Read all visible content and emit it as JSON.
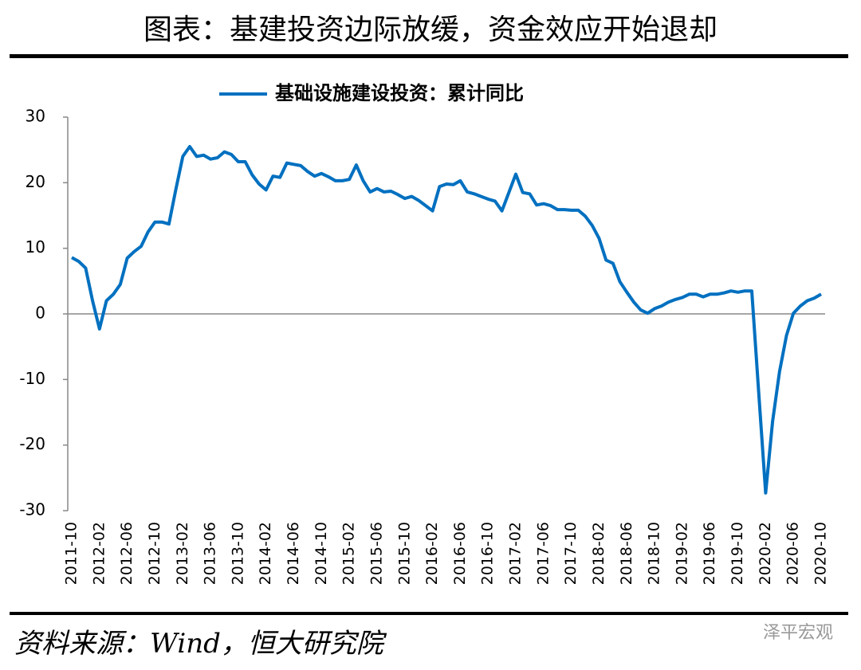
{
  "chart_data": {
    "type": "line",
    "title": "图表：基建投资边际放缓，资金效应开始退却",
    "source": "资料来源：Wind，恒大研究院",
    "watermark": "泽平宏观",
    "categories": [
      "2011-10",
      null,
      null,
      null,
      "2012-02",
      null,
      null,
      null,
      "2012-06",
      null,
      null,
      null,
      "2012-10",
      null,
      null,
      null,
      "2013-02",
      null,
      null,
      null,
      "2013-06",
      null,
      null,
      null,
      "2013-10",
      null,
      null,
      null,
      "2014-02",
      null,
      null,
      null,
      "2014-06",
      null,
      null,
      null,
      "2014-10",
      null,
      null,
      null,
      "2015-02",
      null,
      null,
      null,
      "2015-06",
      null,
      null,
      null,
      "2015-10",
      null,
      null,
      null,
      "2016-02",
      null,
      null,
      null,
      "2016-06",
      null,
      null,
      null,
      "2016-10",
      null,
      null,
      null,
      "2017-02",
      null,
      null,
      null,
      "2017-06",
      null,
      null,
      null,
      "2017-10",
      null,
      null,
      null,
      "2018-02",
      null,
      null,
      null,
      "2018-06",
      null,
      null,
      null,
      "2018-10",
      null,
      null,
      null,
      "2019-02",
      null,
      null,
      null,
      "2019-06",
      null,
      null,
      null,
      "2019-10",
      null,
      null,
      null,
      "2020-02",
      null,
      null,
      null,
      "2020-06",
      null,
      null,
      null,
      "2020-10"
    ],
    "series": [
      {
        "name": "基础设施建设投资：累计同比",
        "color": "#0070c0",
        "values": [
          8.6,
          8.0,
          7.0,
          2.0,
          -2.3,
          2.0,
          3.0,
          4.5,
          8.5,
          9.5,
          10.3,
          12.5,
          14.0,
          14.0,
          13.7,
          19.0,
          24.0,
          25.5,
          24.0,
          24.2,
          23.6,
          23.8,
          24.7,
          24.3,
          23.2,
          23.2,
          21.2,
          19.8,
          18.9,
          21.0,
          20.8,
          23.0,
          22.8,
          22.6,
          21.7,
          21.0,
          21.4,
          20.9,
          20.3,
          20.3,
          20.5,
          22.7,
          20.3,
          18.6,
          19.1,
          18.6,
          18.7,
          18.2,
          17.6,
          17.9,
          17.3,
          16.5,
          15.7,
          19.4,
          19.8,
          19.7,
          20.3,
          18.6,
          18.3,
          17.9,
          17.5,
          17.2,
          15.7,
          18.5,
          21.3,
          18.5,
          18.3,
          16.6,
          16.8,
          16.5,
          15.9,
          15.9,
          15.8,
          15.8,
          14.9,
          13.5,
          11.5,
          8.2,
          7.7,
          4.9,
          3.3,
          1.8,
          0.6,
          0.1,
          0.8,
          1.2,
          1.8,
          2.2,
          2.5,
          3.0,
          3.0,
          2.6,
          3.0,
          3.0,
          3.2,
          3.5,
          3.3,
          3.5,
          3.5,
          -12.0,
          -27.3,
          -16.4,
          -8.8,
          -3.3,
          0.1,
          1.2,
          2.0,
          2.4,
          3.0
        ]
      }
    ],
    "ylim": [
      -30,
      30
    ],
    "yticks": [
      -30,
      -20,
      -10,
      0,
      10,
      20,
      30
    ],
    "legend": "top"
  }
}
